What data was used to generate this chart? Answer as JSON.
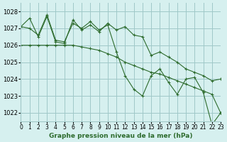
{
  "title": "Graphe pression niveau de la mer (hPa)",
  "background_color": "#d6f0ef",
  "grid_color": "#a0c8c8",
  "line_color": "#2d6b2d",
  "xlim": [
    0,
    23
  ],
  "ylim": [
    1021.5,
    1028.5
  ],
  "yticks": [
    1022,
    1023,
    1024,
    1025,
    1026,
    1027,
    1028
  ],
  "xtick_labels": [
    "0",
    "1",
    "2",
    "3",
    "4",
    "5",
    "6",
    "7",
    "8",
    "9",
    "10",
    "11",
    "12",
    "13",
    "14",
    "15",
    "16",
    "17",
    "18",
    "19",
    "20",
    "21",
    "22",
    "23"
  ],
  "series1": [
    1027.1,
    1027.6,
    1026.5,
    1027.7,
    1026.2,
    1026.1,
    1027.5,
    1026.9,
    1027.2,
    1026.8,
    1027.3,
    1026.9,
    1027.1,
    1026.6,
    1026.5,
    1025.4,
    1025.6,
    1025.3,
    1025.0,
    1024.6,
    1024.4,
    1024.2,
    1023.9,
    1024.0
  ],
  "series2": [
    1027.1,
    1027.0,
    1026.6,
    1027.8,
    1026.3,
    1026.2,
    1027.3,
    1027.0,
    1027.4,
    1026.9,
    1027.2,
    1025.6,
    1024.2,
    1023.4,
    1023.0,
    1024.2,
    1024.6,
    1023.8,
    1023.1,
    1024.0,
    1024.1,
    1023.2,
    1021.3,
    1022.0
  ],
  "series3": [
    1026.0,
    1026.0,
    1026.0,
    1026.0,
    1026.0,
    1026.0,
    1026.0,
    1025.9,
    1025.8,
    1025.7,
    1025.5,
    1025.3,
    1025.0,
    1024.8,
    1024.6,
    1024.4,
    1024.3,
    1024.1,
    1023.9,
    1023.7,
    1023.5,
    1023.3,
    1023.1,
    1022.0
  ]
}
